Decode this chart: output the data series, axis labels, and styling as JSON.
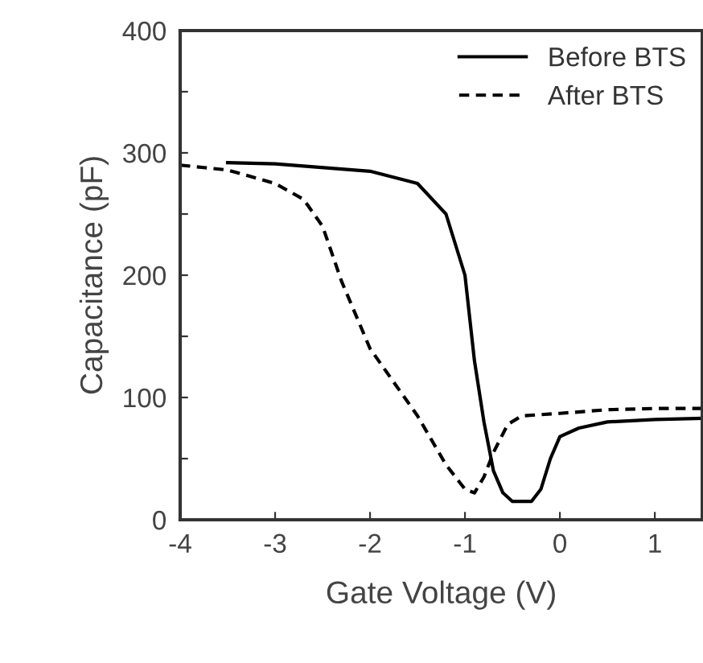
{
  "chart_data": {
    "type": "line",
    "xlabel": "Gate Voltage (V)",
    "ylabel": "Capacitance (pF)",
    "xlim": [
      -4,
      1.5
    ],
    "ylim": [
      0,
      400
    ],
    "xticks": [
      -4,
      -3,
      -2,
      -1,
      0,
      1
    ],
    "yticks": [
      0,
      {
        "value": 50,
        "label": null
      },
      100,
      {
        "value": 150,
        "label": null
      },
      200,
      {
        "value": 250,
        "label": null
      },
      300,
      {
        "value": 350,
        "label": null
      },
      400
    ],
    "grid": false,
    "legend": "top right",
    "series": [
      {
        "name": "Before BTS",
        "color": "#000000",
        "line_style": "solid",
        "x": [
          -3.5,
          -3,
          -2,
          -1.5,
          -1.2,
          -1.0,
          -0.9,
          -0.8,
          -0.7,
          -0.6,
          -0.5,
          -0.3,
          -0.2,
          -0.1,
          0,
          0.2,
          0.5,
          1,
          1.5
        ],
        "values": [
          292,
          291,
          285,
          275,
          250,
          200,
          130,
          80,
          40,
          22,
          15,
          15,
          25,
          50,
          68,
          75,
          80,
          82,
          83
        ]
      },
      {
        "name": "After BTS",
        "color": "#000000",
        "line_style": "dashed",
        "x": [
          -4,
          -3.5,
          -3,
          -2.7,
          -2.5,
          -2.3,
          -2.0,
          -1.5,
          -1.2,
          -1.0,
          -0.9,
          -0.8,
          -0.7,
          -0.55,
          -0.4,
          0,
          0.5,
          1,
          1.5
        ],
        "values": [
          290,
          286,
          275,
          262,
          240,
          195,
          140,
          85,
          45,
          25,
          22,
          35,
          55,
          78,
          85,
          87,
          90,
          91,
          91
        ]
      }
    ]
  }
}
